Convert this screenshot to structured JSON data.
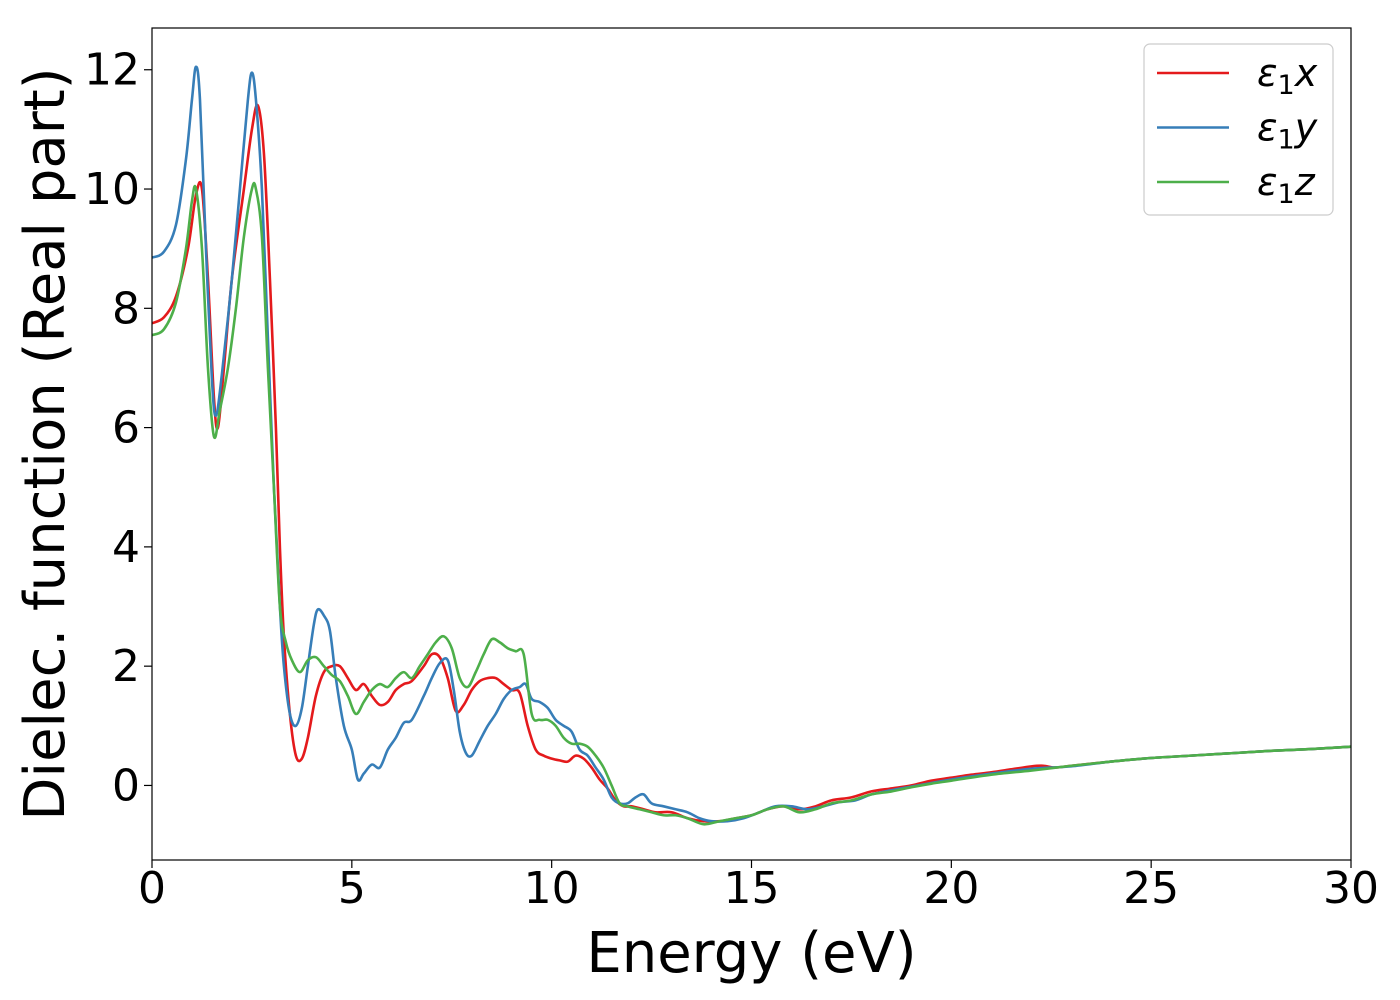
{
  "chart_data": {
    "type": "line",
    "title": "",
    "xlabel": "Energy (eV)",
    "ylabel": "Dielec. function (Real part)",
    "xlim": [
      0,
      30
    ],
    "ylim": [
      -1.25,
      12.7
    ],
    "xticks": [
      0,
      5,
      10,
      15,
      20,
      25,
      30
    ],
    "xtick_labels": [
      "0",
      "5",
      "10",
      "15",
      "20",
      "25",
      "30"
    ],
    "yticks": [
      0,
      2,
      4,
      6,
      8,
      10,
      12
    ],
    "ytick_labels": [
      "0",
      "2",
      "4",
      "6",
      "8",
      "10",
      "12"
    ],
    "grid": false,
    "legend_position": "top-right",
    "series": [
      {
        "name": "ε1x",
        "legend_base": "ε",
        "legend_sub": "1",
        "legend_var": "x",
        "color": "#e41a1c",
        "x": [
          0,
          0.3,
          0.6,
          0.9,
          1.1,
          1.25,
          1.4,
          1.55,
          1.65,
          1.8,
          2.0,
          2.3,
          2.5,
          2.65,
          2.8,
          2.95,
          3.1,
          3.2,
          3.3,
          3.45,
          3.6,
          3.75,
          3.9,
          4.1,
          4.3,
          4.5,
          4.7,
          4.9,
          5.1,
          5.3,
          5.5,
          5.7,
          5.9,
          6.1,
          6.3,
          6.5,
          6.8,
          7.0,
          7.2,
          7.4,
          7.6,
          7.8,
          8.0,
          8.2,
          8.4,
          8.6,
          8.8,
          9.0,
          9.2,
          9.4,
          9.6,
          9.8,
          10.0,
          10.2,
          10.4,
          10.6,
          10.8,
          11.0,
          11.2,
          11.4,
          11.6,
          11.8,
          12.0,
          12.3,
          12.6,
          13.0,
          13.4,
          13.8,
          14.2,
          14.6,
          15.0,
          15.4,
          15.8,
          16.2,
          16.6,
          17.0,
          17.5,
          18.0,
          18.5,
          19.0,
          19.5,
          20.0,
          20.5,
          21.0,
          21.5,
          22.0,
          22.3,
          22.6,
          23.0,
          24.0,
          25.0,
          26.0,
          27.0,
          28.0,
          29.0,
          30.0
        ],
        "y": [
          7.75,
          7.85,
          8.2,
          9.0,
          9.9,
          10.0,
          8.5,
          6.5,
          6.0,
          7.0,
          8.5,
          10.0,
          11.0,
          11.4,
          10.6,
          8.5,
          6.0,
          4.0,
          2.5,
          1.2,
          0.5,
          0.45,
          0.8,
          1.5,
          1.9,
          2.0,
          2.0,
          1.8,
          1.6,
          1.7,
          1.5,
          1.35,
          1.4,
          1.6,
          1.7,
          1.75,
          2.0,
          2.2,
          2.15,
          1.8,
          1.25,
          1.35,
          1.6,
          1.75,
          1.8,
          1.8,
          1.7,
          1.6,
          1.55,
          1.0,
          0.6,
          0.5,
          0.45,
          0.42,
          0.4,
          0.5,
          0.45,
          0.3,
          0.1,
          -0.05,
          -0.25,
          -0.35,
          -0.35,
          -0.4,
          -0.45,
          -0.45,
          -0.55,
          -0.6,
          -0.6,
          -0.55,
          -0.5,
          -0.4,
          -0.35,
          -0.4,
          -0.35,
          -0.25,
          -0.2,
          -0.1,
          -0.05,
          0.0,
          0.08,
          0.13,
          0.18,
          0.22,
          0.27,
          0.32,
          0.33,
          0.3,
          0.33,
          0.4,
          0.46,
          0.5,
          0.54,
          0.58,
          0.61,
          0.65
        ]
      },
      {
        "name": "ε1y",
        "legend_base": "ε",
        "legend_sub": "1",
        "legend_var": "y",
        "color": "#377eb8",
        "x": [
          0,
          0.3,
          0.6,
          0.85,
          1.0,
          1.1,
          1.2,
          1.35,
          1.5,
          1.6,
          1.75,
          2.0,
          2.2,
          2.4,
          2.5,
          2.6,
          2.75,
          2.9,
          3.05,
          3.2,
          3.3,
          3.45,
          3.6,
          3.75,
          3.9,
          4.05,
          4.15,
          4.3,
          4.45,
          4.6,
          4.8,
          5.0,
          5.15,
          5.3,
          5.5,
          5.7,
          5.9,
          6.1,
          6.3,
          6.5,
          6.8,
          7.0,
          7.2,
          7.4,
          7.55,
          7.7,
          7.85,
          8.0,
          8.2,
          8.4,
          8.6,
          8.8,
          9.0,
          9.2,
          9.35,
          9.5,
          9.7,
          9.9,
          10.1,
          10.3,
          10.5,
          10.7,
          10.9,
          11.1,
          11.3,
          11.5,
          11.7,
          11.9,
          12.1,
          12.3,
          12.5,
          12.8,
          13.1,
          13.4,
          13.7,
          14.0,
          14.4,
          14.8,
          15.2,
          15.6,
          16.0,
          16.4,
          16.8,
          17.2,
          17.6,
          18.0,
          18.5,
          19.0,
          19.5,
          20.0,
          21.0,
          22.0,
          23.0,
          24.0,
          25.0,
          26.0,
          27.0,
          28.0,
          29.0,
          30.0
        ],
        "y": [
          8.85,
          8.95,
          9.4,
          10.5,
          11.5,
          12.05,
          11.5,
          9.0,
          6.8,
          6.2,
          6.9,
          8.5,
          10.0,
          11.5,
          11.95,
          11.5,
          10.0,
          7.5,
          5.0,
          3.0,
          2.0,
          1.2,
          1.0,
          1.3,
          2.0,
          2.7,
          2.95,
          2.85,
          2.6,
          1.8,
          1.0,
          0.6,
          0.1,
          0.2,
          0.35,
          0.3,
          0.6,
          0.8,
          1.05,
          1.1,
          1.5,
          1.8,
          2.05,
          2.1,
          1.6,
          0.9,
          0.55,
          0.5,
          0.75,
          1.0,
          1.2,
          1.45,
          1.6,
          1.65,
          1.7,
          1.45,
          1.4,
          1.3,
          1.1,
          1.0,
          0.9,
          0.6,
          0.5,
          0.3,
          0.1,
          -0.2,
          -0.3,
          -0.3,
          -0.2,
          -0.15,
          -0.3,
          -0.35,
          -0.4,
          -0.45,
          -0.55,
          -0.6,
          -0.6,
          -0.55,
          -0.45,
          -0.35,
          -0.35,
          -0.4,
          -0.35,
          -0.28,
          -0.25,
          -0.15,
          -0.08,
          -0.02,
          0.04,
          0.1,
          0.2,
          0.28,
          0.32,
          0.4,
          0.46,
          0.5,
          0.54,
          0.58,
          0.61,
          0.65
        ]
      },
      {
        "name": "ε1z",
        "legend_base": "ε",
        "legend_sub": "1",
        "legend_var": "z",
        "color": "#4daf4a",
        "x": [
          0,
          0.3,
          0.6,
          0.85,
          1.0,
          1.1,
          1.25,
          1.4,
          1.55,
          1.7,
          1.9,
          2.1,
          2.3,
          2.5,
          2.6,
          2.75,
          2.9,
          3.05,
          3.2,
          3.35,
          3.5,
          3.7,
          3.9,
          4.1,
          4.3,
          4.5,
          4.7,
          4.9,
          5.1,
          5.3,
          5.5,
          5.7,
          5.9,
          6.1,
          6.3,
          6.5,
          6.7,
          6.9,
          7.1,
          7.3,
          7.5,
          7.7,
          7.9,
          8.1,
          8.3,
          8.5,
          8.7,
          8.9,
          9.1,
          9.3,
          9.5,
          9.7,
          9.9,
          10.1,
          10.3,
          10.5,
          10.7,
          10.9,
          11.1,
          11.3,
          11.5,
          11.7,
          11.9,
          12.2,
          12.5,
          12.8,
          13.1,
          13.4,
          13.8,
          14.2,
          14.6,
          15.0,
          15.4,
          15.8,
          16.2,
          16.6,
          17.0,
          17.5,
          18.0,
          18.5,
          19.0,
          19.5,
          20.0,
          21.0,
          22.0,
          23.0,
          24.0,
          25.0,
          26.0,
          27.0,
          28.0,
          29.0,
          30.0
        ],
        "y": [
          7.55,
          7.65,
          8.1,
          9.0,
          9.8,
          10.0,
          9.0,
          7.0,
          5.85,
          6.3,
          7.0,
          8.0,
          9.2,
          10.0,
          10.0,
          9.2,
          7.0,
          5.0,
          3.0,
          2.4,
          2.1,
          1.9,
          2.1,
          2.15,
          2.0,
          1.85,
          1.75,
          1.5,
          1.2,
          1.4,
          1.6,
          1.7,
          1.65,
          1.8,
          1.9,
          1.8,
          2.0,
          2.2,
          2.4,
          2.5,
          2.3,
          1.8,
          1.65,
          1.9,
          2.2,
          2.45,
          2.4,
          2.3,
          2.25,
          2.2,
          1.2,
          1.1,
          1.1,
          1.0,
          0.8,
          0.7,
          0.7,
          0.65,
          0.5,
          0.3,
          0.0,
          -0.3,
          -0.35,
          -0.4,
          -0.45,
          -0.5,
          -0.5,
          -0.55,
          -0.65,
          -0.6,
          -0.55,
          -0.5,
          -0.4,
          -0.35,
          -0.45,
          -0.4,
          -0.3,
          -0.25,
          -0.15,
          -0.1,
          -0.03,
          0.03,
          0.08,
          0.18,
          0.25,
          0.33,
          0.4,
          0.46,
          0.5,
          0.54,
          0.58,
          0.61,
          0.65
        ]
      }
    ]
  }
}
